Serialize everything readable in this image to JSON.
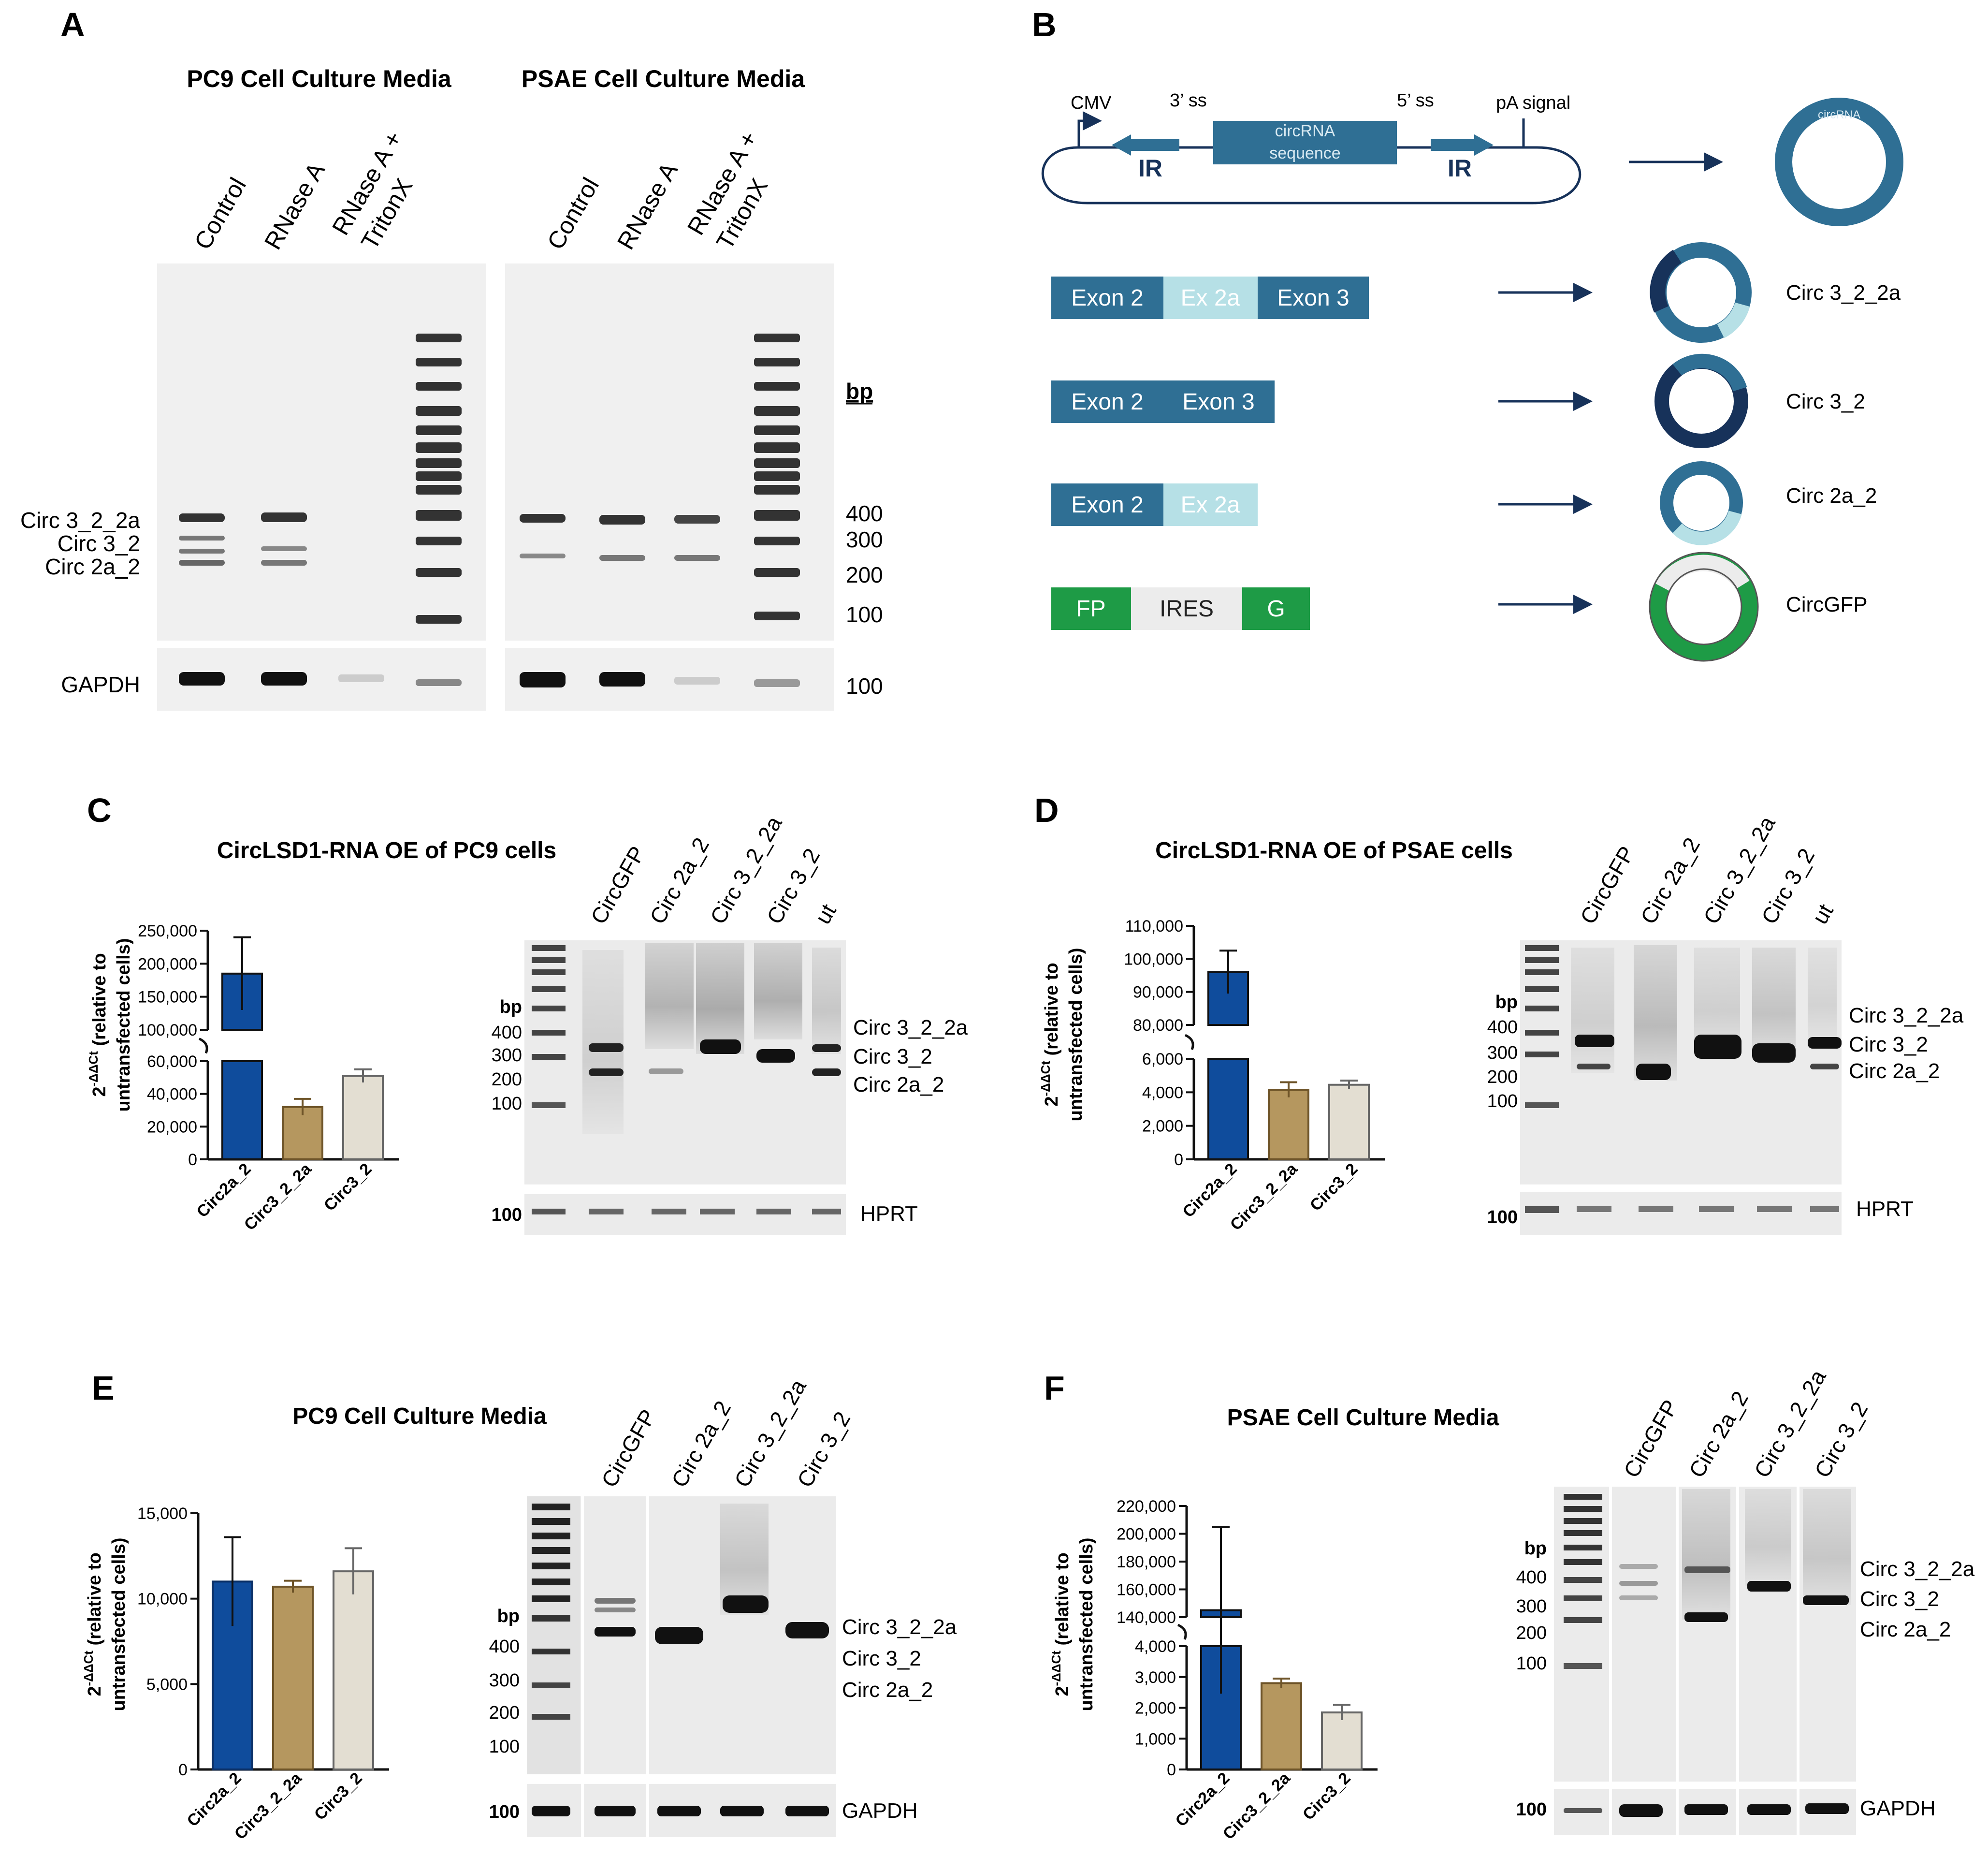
{
  "panels": {
    "A": {
      "letter": "A",
      "title_left": "PC9 Cell Culture Media",
      "title_right": "PSAE Cell Culture Media",
      "lanes_left": [
        "Control",
        "RNase A",
        "RNase A +",
        "TritonX"
      ],
      "lanes_right": [
        "Control",
        "RNase A",
        "RNase A +",
        "TritonX"
      ],
      "bands": [
        "Circ 3_2_2a",
        "Circ 3_2",
        "Circ 2a_2"
      ],
      "bp_title": "bp",
      "bp_marks": [
        "400",
        "300",
        "200",
        "100"
      ],
      "loading_label": "GAPDH",
      "loading_bp": "100"
    },
    "B": {
      "letter": "B",
      "cmv": "CMV",
      "ss3": "3’ ss",
      "ss5": "5’ ss",
      "pa": "pA signal",
      "ir": "IR",
      "circ_seq_1": "circRNA",
      "circ_seq_2": "sequence",
      "circ_ring_label": "circRNA",
      "constructs": [
        {
          "parts": [
            "Exon 2",
            "Ex 2a",
            "Exon 3"
          ],
          "name": "Circ 3_2_2a"
        },
        {
          "parts": [
            "Exon 2",
            "Exon 3"
          ],
          "name": "Circ 3_2"
        },
        {
          "parts": [
            "Exon 2",
            "Ex 2a"
          ],
          "name": "Circ 2a_2"
        },
        {
          "parts": [
            "FP",
            "IRES",
            "G"
          ],
          "name": "CircGFP"
        }
      ],
      "ring_labels": {
        "exon2": "Exon 2",
        "exon3": "Exon 3",
        "ex2a": "Exon 2a",
        "ires": "IRES",
        "fp": "FP",
        "g": "G"
      }
    },
    "C": {
      "letter": "C",
      "title": "CircLSD1-RNA OE of PC9 cells",
      "ylabel_1": "2",
      "ylabel_sup": "-ΔΔCt",
      "ylabel_2": " (relative to",
      "ylabel_3": "untransfected cells)",
      "gel_lanes": [
        "CircGFP",
        "Circ 2a_2",
        "Circ 3_2_2a",
        "Circ 3_2",
        "ut"
      ],
      "gel_bp_title": "bp",
      "gel_bp": [
        "400",
        "300",
        "200",
        "100"
      ],
      "gel_bands": [
        "Circ 3_2_2a",
        "Circ 3_2",
        "Circ 2a_2"
      ],
      "loading_label": "HPRT",
      "loading_bp": "100"
    },
    "D": {
      "letter": "D",
      "title": "CircLSD1-RNA OE of PSAE cells",
      "ylabel_1": "2",
      "ylabel_sup": "-ΔΔCt",
      "ylabel_2": " (relative to",
      "ylabel_3": "untransfected cells)",
      "gel_lanes": [
        "CircGFP",
        "Circ 2a_2",
        "Circ 3_2_2a",
        "Circ 3_2",
        "ut"
      ],
      "gel_bp_title": "bp",
      "gel_bp": [
        "400",
        "300",
        "200",
        "100"
      ],
      "gel_bands": [
        "Circ 3_2_2a",
        "Circ 3_2",
        "Circ 2a_2"
      ],
      "loading_label": "HPRT",
      "loading_bp": "100"
    },
    "E": {
      "letter": "E",
      "title": "PC9 Cell Culture Media",
      "ylabel_1": "2",
      "ylabel_sup": "-ΔΔCt",
      "ylabel_2": " (relative to",
      "ylabel_3": "untransfected cells)",
      "gel_lanes": [
        "CircGFP",
        "Circ 2a_2",
        "Circ 3_2_2a",
        "Circ 3_2"
      ],
      "gel_bp_title": "bp",
      "gel_bp": [
        "400",
        "300",
        "200",
        "100"
      ],
      "gel_bands": [
        "Circ 3_2_2a",
        "Circ 3_2",
        "Circ 2a_2"
      ],
      "loading_label": "GAPDH",
      "loading_bp": "100"
    },
    "F": {
      "letter": "F",
      "title": "PSAE Cell Culture Media",
      "ylabel_1": "2",
      "ylabel_sup": "-ΔΔCt",
      "ylabel_2": " (relative to",
      "ylabel_3": "untransfected cells)",
      "gel_lanes": [
        "CircGFP",
        "Circ 2a_2",
        "Circ 3_2_2a",
        "Circ 3_2"
      ],
      "gel_bp_title": "bp",
      "gel_bp": [
        "400",
        "300",
        "200",
        "100"
      ],
      "gel_bands": [
        "Circ 3_2_2a",
        "Circ 3_2",
        "Circ 2a_2"
      ],
      "loading_label": "GAPDH",
      "loading_bp": "100"
    }
  },
  "colors": {
    "circ2a_2": "#0f4c9c",
    "circ3_2_2a": "#b5975f",
    "circ3_2": "#e3ded2",
    "exon_dark": "#2f6f94",
    "exon_light": "#b6e0e6",
    "gfp_green": "#1e9b46",
    "navy": "#17325a"
  },
  "chart_data": [
    {
      "panel": "C",
      "type": "bar",
      "categories": [
        "Circ2a_2",
        "Circ3_2_2a",
        "Circ3_2"
      ],
      "values": [
        185000,
        32000,
        51000
      ],
      "errors": [
        55000,
        5000,
        4000
      ],
      "title": "CircLSD1-RNA OE of PC9 cells",
      "axis_break": [
        60000,
        100000
      ],
      "yticks_lower": [
        "0",
        "20,000",
        "40,000",
        "60,000"
      ],
      "yticks_upper": [
        "100,000",
        "150,000",
        "200,000",
        "250,000"
      ],
      "ylim": [
        0,
        250000
      ]
    },
    {
      "panel": "D",
      "type": "bar",
      "categories": [
        "Circ2a_2",
        "Circ3_2_2a",
        "Circ3_2"
      ],
      "values": [
        96000,
        4150,
        4450
      ],
      "errors": [
        6500,
        450,
        250
      ],
      "title": "CircLSD1-RNA OE of PSAE cells",
      "axis_break": [
        6000,
        80000
      ],
      "yticks_lower": [
        "0",
        "2,000",
        "4,000",
        "6,000"
      ],
      "yticks_upper": [
        "80,000",
        "90,000",
        "100,000",
        "110,000"
      ],
      "ylim": [
        0,
        110000
      ]
    },
    {
      "panel": "E",
      "type": "bar",
      "categories": [
        "Circ2a_2",
        "Circ3_2_2a",
        "Circ3_2"
      ],
      "values": [
        11000,
        10700,
        11600
      ],
      "errors": [
        2600,
        350,
        1350
      ],
      "title": "PC9 Cell Culture Media",
      "yticks": [
        "0",
        "5,000",
        "10,000",
        "15,000"
      ],
      "ylim": [
        0,
        15000
      ]
    },
    {
      "panel": "F",
      "type": "bar",
      "categories": [
        "Circ2a_2",
        "Circ3_2_2a",
        "Circ3_2"
      ],
      "values": [
        145000,
        2800,
        1850
      ],
      "errors": [
        60000,
        150,
        250
      ],
      "title": "PSAE Cell Culture Media",
      "axis_break": [
        4000,
        140000
      ],
      "yticks_lower": [
        "0",
        "1,000",
        "2,000",
        "3,000",
        "4,000"
      ],
      "yticks_upper": [
        "140,000",
        "160,000",
        "180,000",
        "200,000",
        "220,000"
      ],
      "ylim": [
        0,
        220000
      ]
    }
  ]
}
